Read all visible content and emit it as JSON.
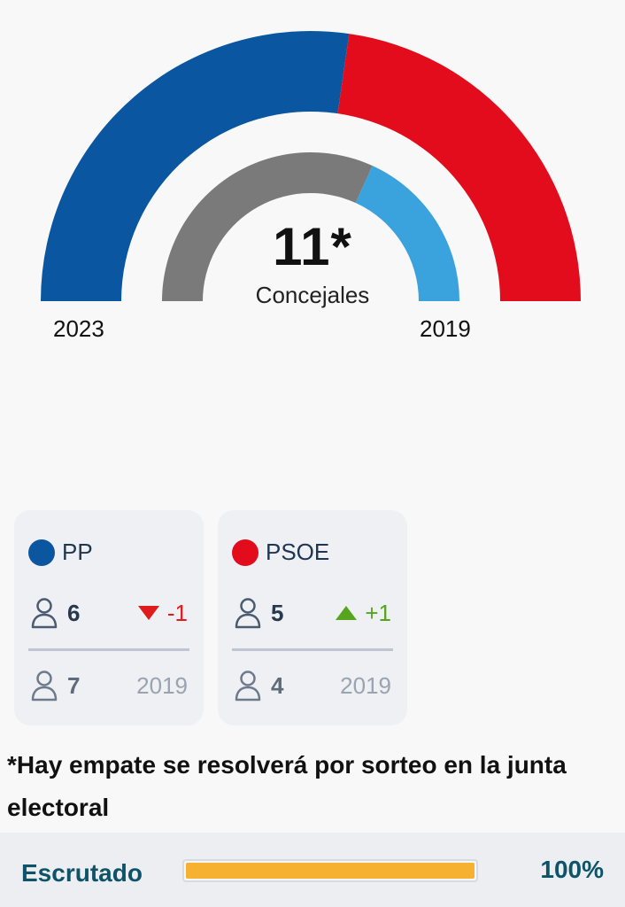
{
  "chart_data": {
    "type": "pie",
    "title": "Concejales",
    "total_label": "11*",
    "subtitle": "Concejales",
    "rings": [
      {
        "name": "2023",
        "series": [
          {
            "party": "PP",
            "seats": 6,
            "color": "#0a56a1"
          },
          {
            "party": "PSOE",
            "seats": 5,
            "color": "#e20c1c"
          }
        ]
      },
      {
        "name": "2019",
        "series": [
          {
            "party": "PP",
            "seats": 7,
            "color": "#7a7a7a"
          },
          {
            "party": "PSOE",
            "seats": 4,
            "color": "#3aa2dc"
          }
        ]
      }
    ]
  },
  "years": {
    "outer": "2023",
    "inner": "2019"
  },
  "parties": [
    {
      "name": "PP",
      "color": "#0a56a1",
      "seats": "6",
      "delta": "-1",
      "delta_dir": "down",
      "prev_seats": "7",
      "prev_year": "2019"
    },
    {
      "name": "PSOE",
      "color": "#e20c1c",
      "seats": "5",
      "delta": "+1",
      "delta_dir": "up",
      "prev_seats": "4",
      "prev_year": "2019"
    }
  ],
  "note": "*Hay empate se resolverá por sorteo en la junta electoral",
  "footer": {
    "label": "Escrutado",
    "value": "100%",
    "progress": 100
  }
}
